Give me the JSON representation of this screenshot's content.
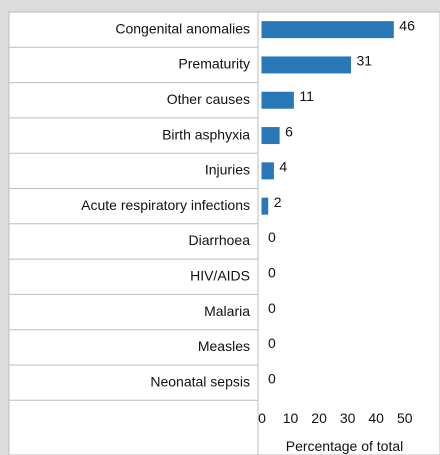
{
  "chart_data": {
    "type": "bar",
    "orientation": "horizontal",
    "categories": [
      "Congenital anomalies",
      "Prematurity",
      "Other causes",
      "Birth asphyxia",
      "Injuries",
      "Acute respiratory infections",
      "Diarrhoea",
      "HIV/AIDS",
      "Malaria",
      "Measles",
      "Neonatal sepsis"
    ],
    "values": [
      46,
      31,
      11,
      6,
      4,
      2,
      0,
      0,
      0,
      0,
      0
    ],
    "color": "#2878b8",
    "xlim": [
      0,
      55
    ],
    "xticks": [
      0,
      10,
      20,
      30,
      40,
      50
    ],
    "xlabel": "Percentage of total"
  }
}
